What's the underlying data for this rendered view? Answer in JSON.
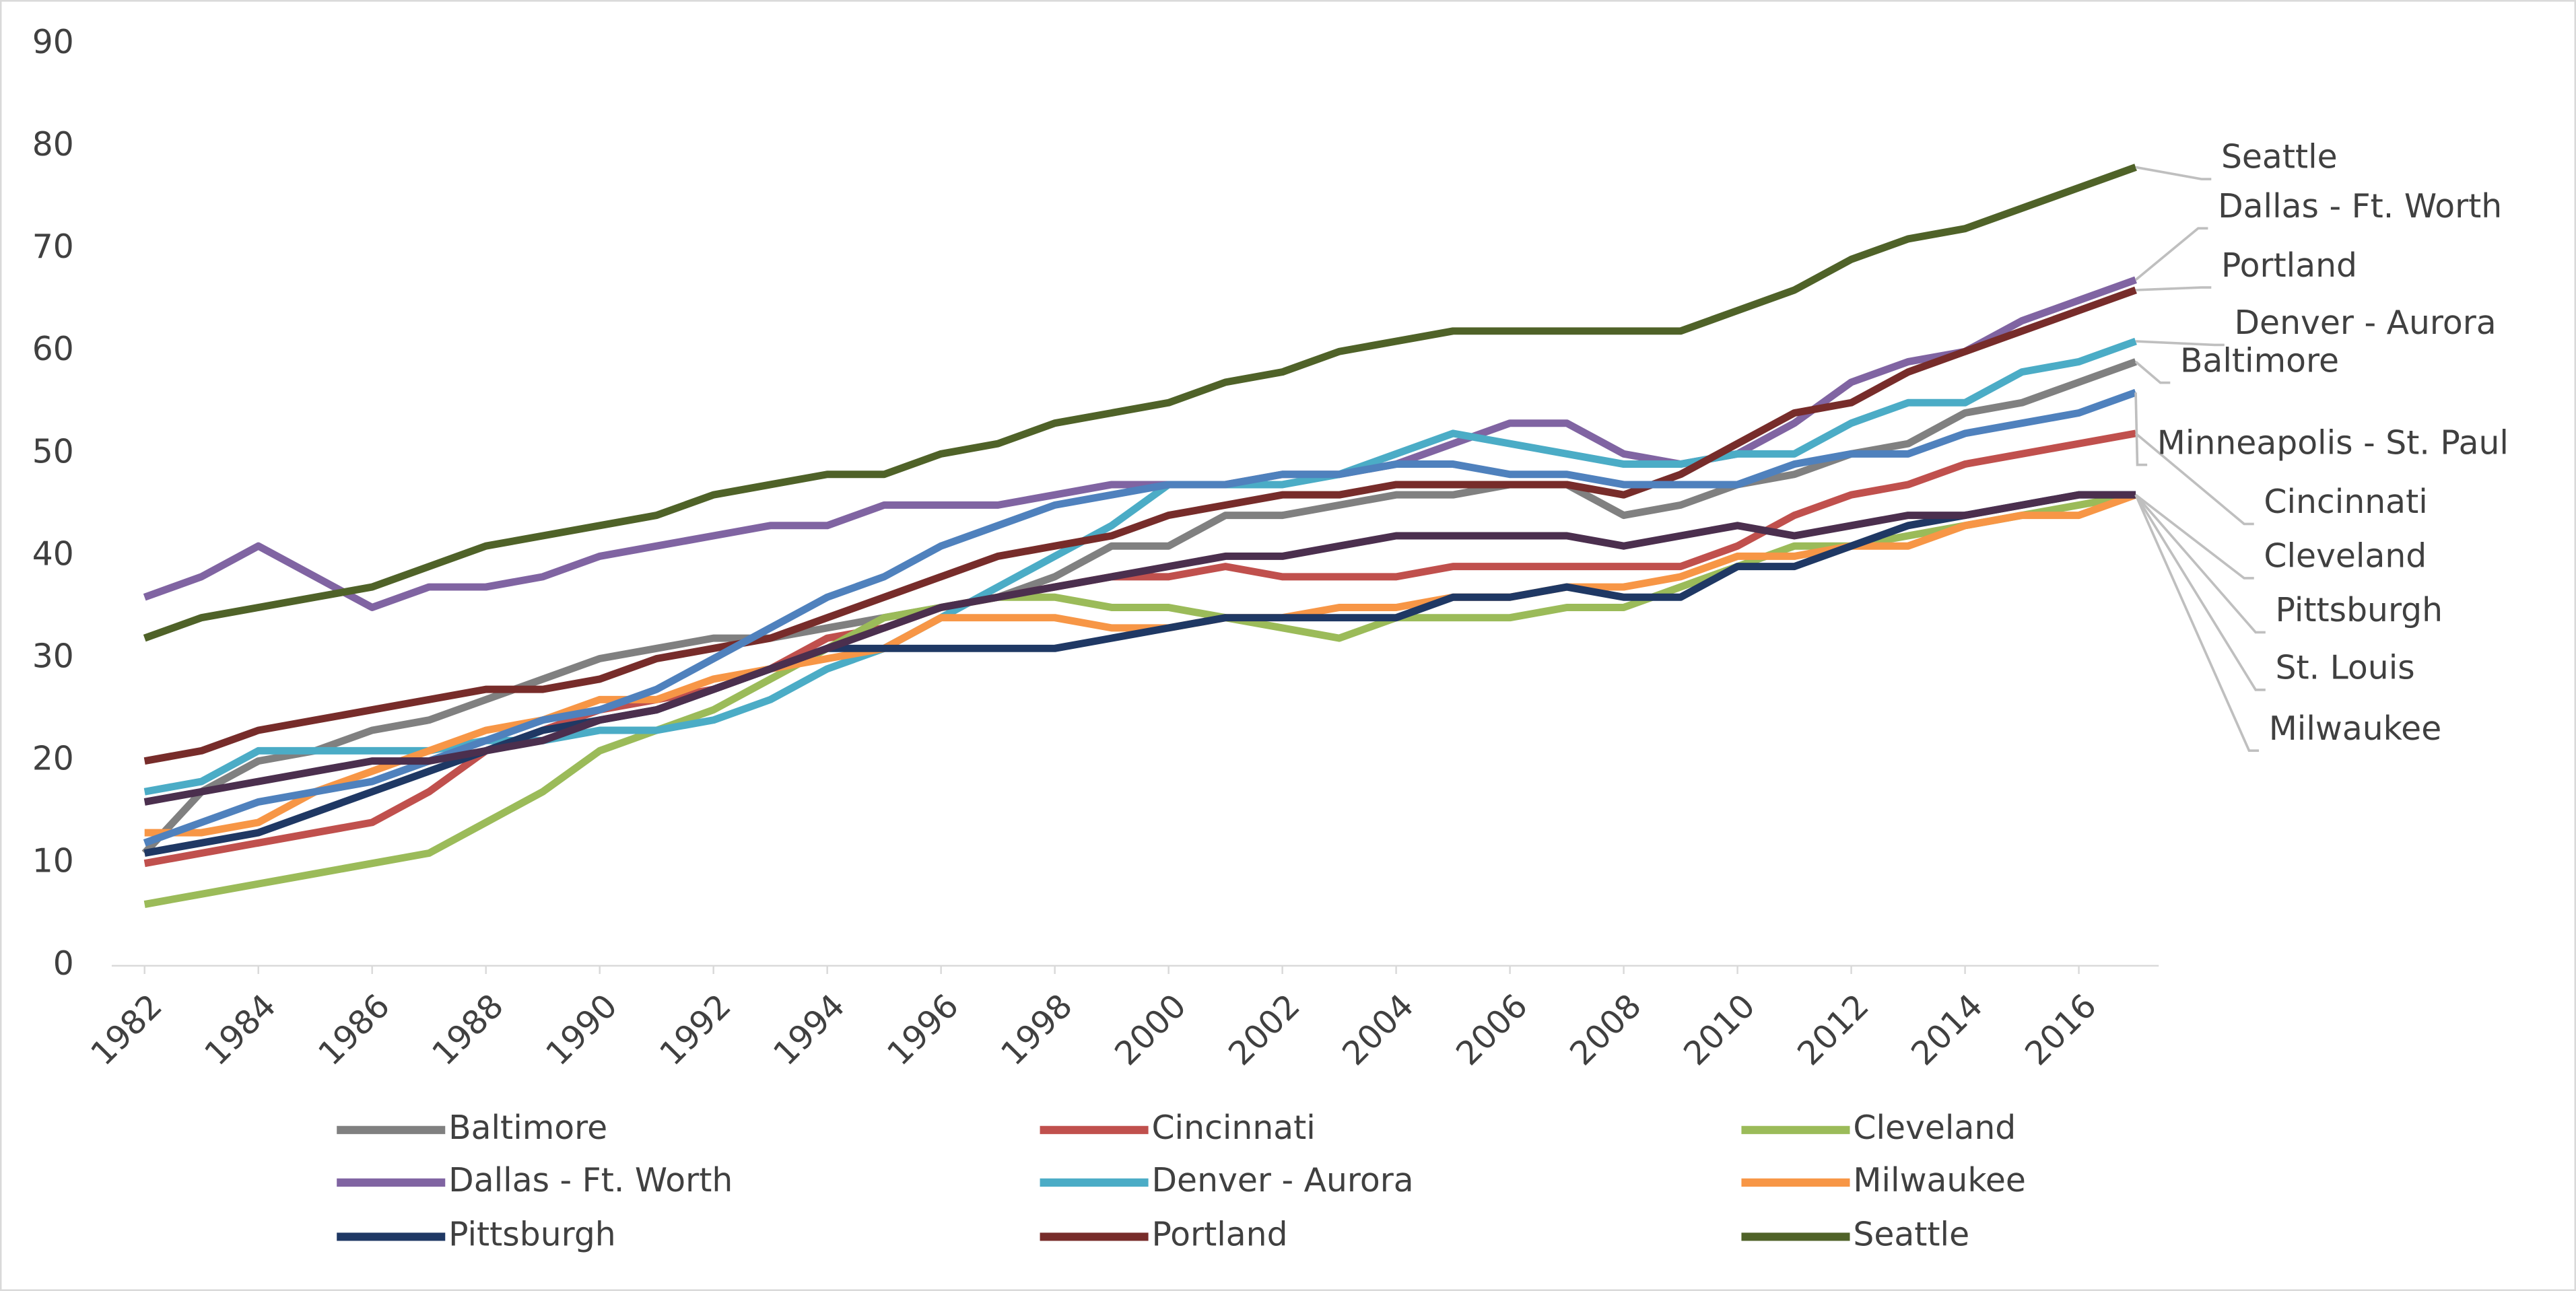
{
  "chart_data": {
    "type": "line",
    "x": [
      1982,
      1983,
      1984,
      1985,
      1986,
      1987,
      1988,
      1989,
      1990,
      1991,
      1992,
      1993,
      1994,
      1995,
      1996,
      1997,
      1998,
      1999,
      2000,
      2001,
      2002,
      2003,
      2004,
      2005,
      2006,
      2007,
      2008,
      2009,
      2010,
      2011,
      2012,
      2013,
      2014,
      2015,
      2016,
      2017
    ],
    "xlim": [
      1982,
      2017
    ],
    "xticks": [
      1982,
      1984,
      1986,
      1988,
      1990,
      1992,
      1994,
      1996,
      1998,
      2000,
      2002,
      2004,
      2006,
      2008,
      2010,
      2012,
      2014,
      2016
    ],
    "ylim": [
      0,
      90
    ],
    "yticks": [
      0,
      10,
      20,
      30,
      40,
      50,
      60,
      70,
      80,
      90
    ],
    "grid": false,
    "legend": "bottom",
    "series": [
      {
        "name": "Baltimore",
        "color": "#808080",
        "values": [
          11,
          17,
          20,
          21,
          23,
          24,
          26,
          28,
          30,
          31,
          32,
          32,
          33,
          34,
          35,
          36,
          38,
          41,
          41,
          44,
          44,
          45,
          46,
          46,
          47,
          47,
          44,
          45,
          47,
          48,
          50,
          51,
          54,
          55,
          57,
          59
        ]
      },
      {
        "name": "Cincinnati",
        "color": "#c0504d",
        "values": [
          10,
          11,
          12,
          13,
          14,
          17,
          21,
          23,
          25,
          26,
          27,
          29,
          32,
          33,
          35,
          36,
          37,
          38,
          38,
          39,
          38,
          38,
          38,
          39,
          39,
          39,
          39,
          39,
          41,
          44,
          46,
          47,
          49,
          50,
          51,
          52
        ]
      },
      {
        "name": "Cleveland",
        "color": "#9bbb59",
        "values": [
          6,
          7,
          8,
          9,
          10,
          11,
          14,
          17,
          21,
          23,
          25,
          28,
          31,
          34,
          35,
          36,
          36,
          35,
          35,
          34,
          33,
          32,
          34,
          34,
          34,
          35,
          35,
          37,
          39,
          41,
          41,
          42,
          43,
          44,
          45,
          46
        ]
      },
      {
        "name": "Dallas - Ft. Worth",
        "color": "#8064a2",
        "values": [
          36,
          38,
          41,
          38,
          35,
          37,
          37,
          38,
          40,
          41,
          42,
          43,
          43,
          45,
          45,
          45,
          46,
          47,
          47,
          47,
          48,
          48,
          49,
          51,
          53,
          53,
          50,
          49,
          50,
          53,
          57,
          59,
          60,
          63,
          65,
          67
        ]
      },
      {
        "name": "Denver - Aurora",
        "color": "#4bacc6",
        "values": [
          17,
          18,
          21,
          21,
          21,
          21,
          22,
          22,
          23,
          23,
          24,
          26,
          29,
          31,
          34,
          37,
          40,
          43,
          47,
          47,
          47,
          48,
          50,
          52,
          51,
          50,
          49,
          49,
          50,
          50,
          53,
          55,
          55,
          58,
          59,
          61
        ]
      },
      {
        "name": "Milwaukee",
        "color": "#f79646",
        "values": [
          13,
          13,
          14,
          17,
          19,
          21,
          23,
          24,
          26,
          26,
          28,
          29,
          30,
          31,
          34,
          34,
          34,
          33,
          33,
          34,
          34,
          35,
          35,
          36,
          36,
          37,
          37,
          38,
          40,
          40,
          41,
          41,
          43,
          44,
          44,
          46
        ]
      },
      {
        "name": "Pittsburgh",
        "color": "#1f3864",
        "values": [
          11,
          12,
          13,
          15,
          17,
          19,
          21,
          23,
          24,
          25,
          27,
          29,
          31,
          31,
          31,
          31,
          31,
          32,
          33,
          34,
          34,
          34,
          34,
          36,
          36,
          37,
          36,
          36,
          39,
          39,
          41,
          43,
          44,
          45,
          46,
          46
        ]
      },
      {
        "name": "Portland",
        "color": "#772c2a",
        "values": [
          20,
          21,
          23,
          24,
          25,
          26,
          27,
          27,
          28,
          30,
          31,
          32,
          34,
          36,
          38,
          40,
          41,
          42,
          44,
          45,
          46,
          46,
          47,
          47,
          47,
          47,
          46,
          48,
          51,
          54,
          55,
          58,
          60,
          62,
          64,
          66
        ]
      },
      {
        "name": "Seattle",
        "color": "#4f6228",
        "values": [
          32,
          34,
          35,
          36,
          37,
          39,
          41,
          42,
          43,
          44,
          46,
          47,
          48,
          48,
          50,
          51,
          53,
          54,
          55,
          57,
          58,
          60,
          61,
          62,
          62,
          62,
          62,
          62,
          64,
          66,
          69,
          71,
          72,
          74,
          76,
          78
        ]
      },
      {
        "name": "Minneapolis - St. Paul",
        "color": "#4f81bd",
        "legend": false,
        "values": [
          12,
          14,
          16,
          17,
          18,
          20,
          22,
          24,
          25,
          27,
          30,
          33,
          36,
          38,
          41,
          43,
          45,
          46,
          47,
          47,
          48,
          48,
          49,
          49,
          48,
          48,
          47,
          47,
          47,
          49,
          50,
          50,
          52,
          53,
          54,
          56
        ]
      },
      {
        "name": "St. Louis",
        "color": "#4b2f4e",
        "legend": false,
        "values": [
          16,
          17,
          18,
          19,
          20,
          20,
          21,
          22,
          24,
          25,
          27,
          29,
          31,
          33,
          35,
          36,
          37,
          38,
          39,
          40,
          40,
          41,
          42,
          42,
          42,
          42,
          41,
          42,
          43,
          42,
          43,
          44,
          44,
          45,
          46,
          46
        ]
      }
    ]
  }
}
